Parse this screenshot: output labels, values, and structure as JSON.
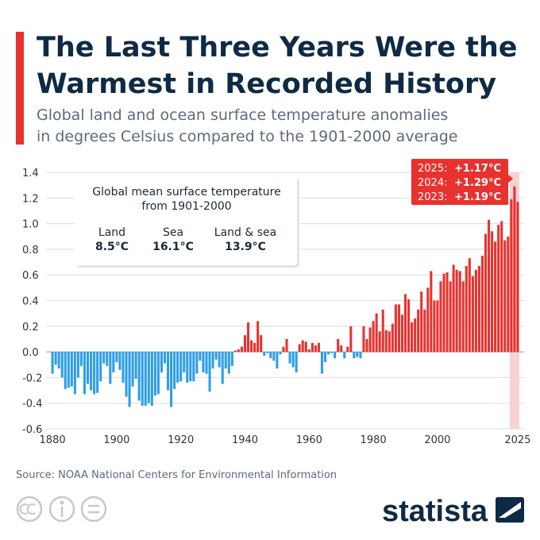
{
  "chart_data": {
    "type": "bar",
    "title": [
      "The Last Three Years Were the",
      "Warmest in Recorded History"
    ],
    "subtitle": [
      "Global land and ocean surface temperature anomalies",
      "in degrees Celsius compared to the 1901-2000 average"
    ],
    "x": [
      1880,
      1881,
      1882,
      1883,
      1884,
      1885,
      1886,
      1887,
      1888,
      1889,
      1890,
      1891,
      1892,
      1893,
      1894,
      1895,
      1896,
      1897,
      1898,
      1899,
      1900,
      1901,
      1902,
      1903,
      1904,
      1905,
      1906,
      1907,
      1908,
      1909,
      1910,
      1911,
      1912,
      1913,
      1914,
      1915,
      1916,
      1917,
      1918,
      1919,
      1920,
      1921,
      1922,
      1923,
      1924,
      1925,
      1926,
      1927,
      1928,
      1929,
      1930,
      1931,
      1932,
      1933,
      1934,
      1935,
      1936,
      1937,
      1938,
      1939,
      1940,
      1941,
      1942,
      1943,
      1944,
      1945,
      1946,
      1947,
      1948,
      1949,
      1950,
      1951,
      1952,
      1953,
      1954,
      1955,
      1956,
      1957,
      1958,
      1959,
      1960,
      1961,
      1962,
      1963,
      1964,
      1965,
      1966,
      1967,
      1968,
      1969,
      1970,
      1971,
      1972,
      1973,
      1974,
      1975,
      1976,
      1977,
      1978,
      1979,
      1980,
      1981,
      1982,
      1983,
      1984,
      1985,
      1986,
      1987,
      1988,
      1989,
      1990,
      1991,
      1992,
      1993,
      1994,
      1995,
      1996,
      1997,
      1998,
      1999,
      2000,
      2001,
      2002,
      2003,
      2004,
      2005,
      2006,
      2007,
      2008,
      2009,
      2010,
      2011,
      2012,
      2013,
      2014,
      2015,
      2016,
      2017,
      2018,
      2019,
      2020,
      2021,
      2022,
      2023,
      2024,
      2025
    ],
    "values": [
      -0.17,
      -0.1,
      -0.13,
      -0.2,
      -0.29,
      -0.28,
      -0.27,
      -0.33,
      -0.2,
      -0.11,
      -0.33,
      -0.25,
      -0.3,
      -0.33,
      -0.32,
      -0.23,
      -0.09,
      -0.11,
      -0.25,
      -0.16,
      -0.08,
      -0.14,
      -0.24,
      -0.35,
      -0.43,
      -0.27,
      -0.21,
      -0.38,
      -0.42,
      -0.42,
      -0.4,
      -0.42,
      -0.34,
      -0.33,
      -0.16,
      -0.09,
      -0.3,
      -0.43,
      -0.29,
      -0.24,
      -0.23,
      -0.16,
      -0.24,
      -0.23,
      -0.23,
      -0.17,
      -0.07,
      -0.16,
      -0.17,
      -0.31,
      -0.13,
      -0.06,
      -0.12,
      -0.25,
      -0.13,
      -0.17,
      -0.11,
      0.01,
      0.02,
      0.04,
      0.13,
      0.23,
      0.09,
      0.07,
      0.24,
      0.13,
      -0.03,
      -0.01,
      -0.05,
      -0.07,
      -0.13,
      -0.02,
      0.04,
      0.1,
      -0.09,
      -0.12,
      -0.16,
      0.06,
      0.09,
      0.08,
      0.02,
      0.07,
      0.05,
      0.07,
      -0.17,
      -0.08,
      -0.02,
      -0.01,
      -0.05,
      0.1,
      0.05,
      -0.05,
      0.04,
      0.2,
      -0.05,
      -0.04,
      -0.05,
      0.2,
      0.1,
      0.19,
      0.24,
      0.3,
      0.16,
      0.33,
      0.17,
      0.16,
      0.22,
      0.37,
      0.37,
      0.29,
      0.45,
      0.41,
      0.23,
      0.26,
      0.33,
      0.47,
      0.33,
      0.5,
      0.63,
      0.4,
      0.4,
      0.55,
      0.61,
      0.62,
      0.55,
      0.68,
      0.64,
      0.63,
      0.55,
      0.67,
      0.73,
      0.59,
      0.64,
      0.67,
      0.75,
      0.92,
      1.03,
      0.94,
      0.86,
      0.99,
      1.02,
      0.87,
      0.9,
      1.19,
      1.29,
      1.17
    ],
    "colors": {
      "positive": "#e8322f",
      "negative": "#2e9ee6"
    },
    "xlim": [
      1878,
      2027
    ],
    "xticks": [
      1880,
      1900,
      1920,
      1940,
      1960,
      1980,
      2000,
      2025
    ],
    "ylim": [
      -0.6,
      1.4
    ],
    "yticks": [
      -0.6,
      -0.4,
      -0.2,
      {
        "value": 0,
        "label": "0.0"
      },
      0.2,
      0.4,
      0.6,
      0.8,
      {
        "value": 1,
        "label": "1.0"
      },
      1.2,
      1.4
    ],
    "grid": true,
    "highlight": [
      {
        "year": {
          "value": 2025,
          "label": "2025:"
        },
        "anomaly": "+1.17°C"
      },
      {
        "year": {
          "value": 2024,
          "label": "2024:"
        },
        "anomaly": "+1.29°C"
      },
      {
        "year": {
          "value": 2023,
          "label": "2023:"
        },
        "anomaly": "+1.19°C"
      }
    ],
    "info_box": {
      "title": [
        "Global mean surface temperature",
        "from 1901-2000"
      ],
      "items": [
        {
          "name": "Land",
          "value": "8.5°C"
        },
        {
          "name": "Sea",
          "value": "16.1°C"
        },
        {
          "name": "Land & sea",
          "value": "13.9°C"
        }
      ]
    },
    "source": "Source: NOAA National Centers for Environmental Information",
    "brand": "statista"
  }
}
